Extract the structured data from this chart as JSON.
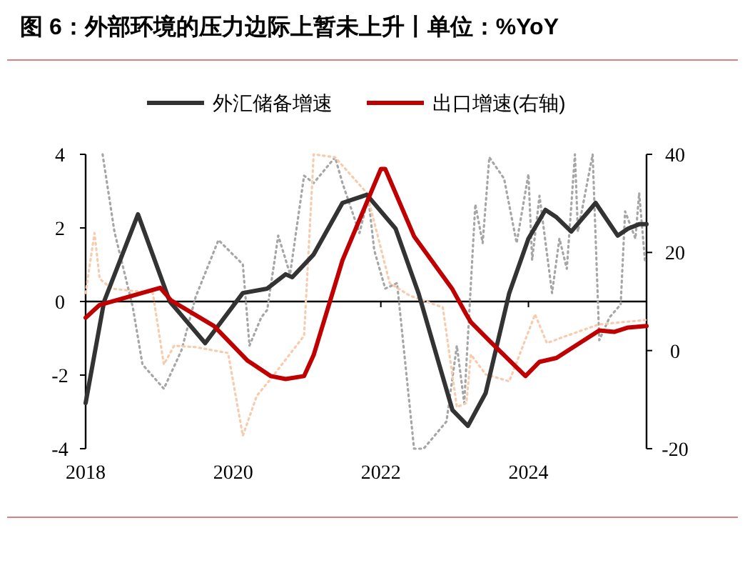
{
  "chart_data": {
    "type": "line",
    "title": "图 6：外部环境的压力边际上暂未上升丨单位：%YoY",
    "legend": "top",
    "grid": false,
    "ref_lines": [
      {
        "axis": "y",
        "value": 0,
        "color": "#000000"
      }
    ],
    "xlim": [
      2018,
      2025.6
    ],
    "xticks": [
      2018,
      2020,
      2022,
      2024
    ],
    "ylim": [
      -4,
      4
    ],
    "yticks": [
      -4,
      -2,
      0,
      2,
      4
    ],
    "y2lim": [
      -20,
      40
    ],
    "y2ticks": [
      -20,
      0,
      20,
      40
    ],
    "series": [
      {
        "color": "#a6a6a6",
        "line_style": "dotted",
        "x": [
          2018.23,
          2018.39,
          2018.64,
          2018.77,
          2019.06,
          2019.3,
          2019.49,
          2019.8,
          2020.13,
          2020.22,
          2020.38,
          2020.46,
          2020.61,
          2020.77,
          2020.96,
          2021.09,
          2021.38,
          2021.48,
          2021.71,
          2021.83,
          2021.91,
          2022.06,
          2022.22,
          2022.45,
          2022.58,
          2022.89,
          2023.03,
          2023.13,
          2023.28,
          2023.38,
          2023.47,
          2023.67,
          2023.84,
          2024.0,
          2024.05,
          2024.15,
          2024.32,
          2024.42,
          2024.52,
          2024.63,
          2024.67,
          2024.87,
          2024.96,
          2025.1,
          2025.25,
          2025.31,
          2025.45,
          2025.5,
          2025.58
        ],
        "values": [
          4,
          1.9,
          -0.16,
          -1.71,
          -2.37,
          -1.32,
          0.12,
          1.67,
          1.01,
          -1.2,
          -0.43,
          -0.23,
          1.79,
          0.74,
          3.42,
          3.22,
          3.92,
          3.22,
          1.86,
          2.83,
          1.4,
          0.35,
          0.5,
          -4,
          -4,
          -3.26,
          -1.2,
          -2.76,
          2.64,
          1.59,
          3.92,
          3.34,
          1.59,
          3.46,
          1.13,
          2.87,
          0.23,
          1.71,
          0.89,
          4,
          1.9,
          4,
          -1.05,
          -0.43,
          -0.08,
          2.45,
          1.71,
          2.95,
          1.09
        ]
      },
      {
        "color": "#f8cbad",
        "line_style": "dotted",
        "x": [
          2018.0,
          2018.12,
          2018.19,
          2018.35,
          2018.91,
          2019.06,
          2019.2,
          2019.49,
          2019.93,
          2020.13,
          2020.32,
          2020.51,
          2020.96,
          2021.09,
          2021.38,
          2021.81,
          2022.12,
          2022.39,
          2022.84,
          2023.03,
          2023.16,
          2023.22,
          2023.42,
          2023.74,
          2024.09,
          2024.25,
          2024.52,
          2024.96,
          2025.6
        ],
        "values": [
          0.23,
          1.86,
          0.62,
          0.35,
          0.23,
          -1.71,
          -1.2,
          -1.24,
          -1.4,
          -3.65,
          -2.56,
          -2.1,
          -0.93,
          4,
          3.92,
          2.95,
          0.5,
          0.16,
          -0.16,
          -2.87,
          -2.76,
          -1.44,
          -1.98,
          -2.17,
          -0.35,
          -1.13,
          -0.93,
          -0.62,
          -0.5
        ]
      },
      {
        "name": "外汇储备增速",
        "color": "#333333",
        "line_style": "solid",
        "x": [
          2018.0,
          2018.25,
          2018.71,
          2019.14,
          2019.62,
          2020.13,
          2020.46,
          2020.71,
          2020.8,
          2021.09,
          2021.48,
          2021.81,
          2022.2,
          2022.51,
          2022.97,
          2023.18,
          2023.42,
          2023.74,
          2024.0,
          2024.23,
          2024.38,
          2024.58,
          2024.91,
          2025.21,
          2025.35,
          2025.5,
          2025.6
        ],
        "values": [
          -2.76,
          0,
          2.37,
          0,
          -1.13,
          0.23,
          0.35,
          0.74,
          0.66,
          1.28,
          2.68,
          2.9,
          1.98,
          0.23,
          -2.95,
          -3.38,
          -2.49,
          0.23,
          1.71,
          2.49,
          2.29,
          1.9,
          2.68,
          1.79,
          1.98,
          2.1,
          2.1
        ]
      },
      {
        "name": "出口增速(右轴)",
        "color": "#c00000",
        "line_style": "solid",
        "axis": "y2",
        "x": [
          2018.0,
          2018.19,
          2019.01,
          2019.16,
          2019.74,
          2020.19,
          2020.51,
          2020.71,
          2020.96,
          2021.09,
          2021.48,
          2022.0,
          2022.06,
          2022.45,
          2022.97,
          2023.16,
          2023.22,
          2023.47,
          2023.96,
          2024.15,
          2024.38,
          2024.96,
          2025.16,
          2025.35,
          2025.6
        ],
        "values": [
          6.7,
          9.3,
          12.8,
          10.2,
          5.0,
          -2.0,
          -5.2,
          -5.8,
          -5.2,
          -0.9,
          18.4,
          37.0,
          37.0,
          23.3,
          12.5,
          7.3,
          5.8,
          2.0,
          -5.2,
          -2.3,
          -1.5,
          4.1,
          3.8,
          4.7,
          5.0
        ]
      }
    ]
  }
}
